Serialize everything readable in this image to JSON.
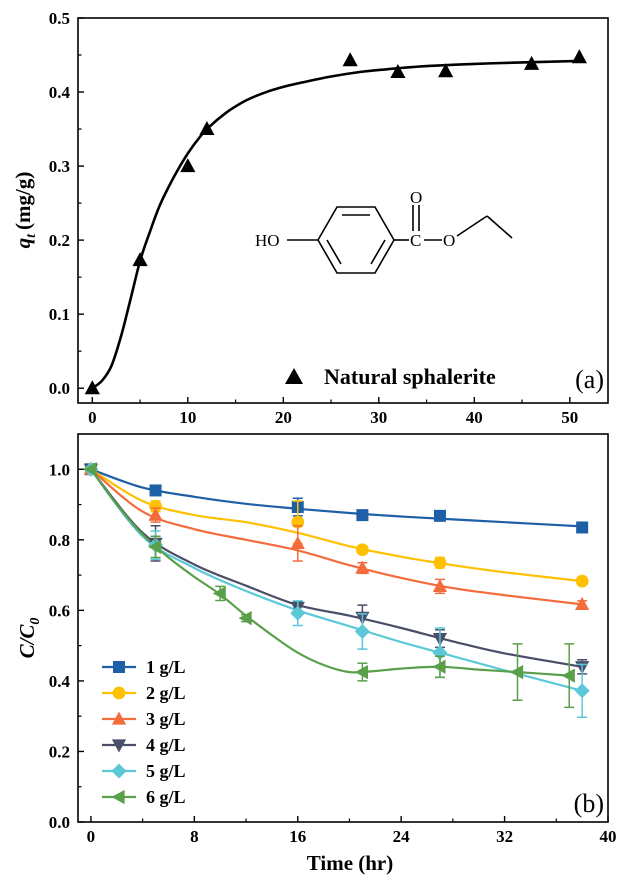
{
  "chart_data": [
    {
      "type": "scatter",
      "panel_label": "(a)",
      "xlim": [
        -1.5,
        54
      ],
      "ylim": [
        -0.02,
        0.5
      ],
      "xticks": [
        "0",
        "10",
        "20",
        "30",
        "40",
        "50"
      ],
      "yticks": [
        "0.0",
        "0.1",
        "0.2",
        "0.3",
        "0.4",
        "0.5"
      ],
      "xlabel": "",
      "ylabel": {
        "main": "q",
        "sub": "t",
        "unit": "(mg/g)"
      },
      "legend": {
        "position": "bottom-right",
        "entries": [
          "Natural sphalerite"
        ]
      },
      "structure_labels": {
        "hydroxyl": "HO",
        "carbonyl_c": "C",
        "carbonyl_o": "O",
        "ester_o": "O"
      },
      "series": [
        {
          "name": "Natural sphalerite",
          "marker": "triangle-up",
          "color": "#000000",
          "x": [
            0,
            5,
            10,
            12,
            27,
            32,
            37,
            46,
            51
          ],
          "y": [
            0.0,
            0.173,
            0.3,
            0.35,
            0.443,
            0.427,
            0.428,
            0.438,
            0.447
          ]
        }
      ],
      "fit_curve": {
        "color": "#000000",
        "x": [
          0,
          1,
          2,
          3,
          4,
          5,
          6,
          7,
          8,
          9,
          10,
          11,
          12,
          14,
          16,
          18,
          20,
          22,
          25,
          28,
          31,
          35,
          40,
          45,
          51
        ],
        "y": [
          0.0,
          0.01,
          0.03,
          0.07,
          0.12,
          0.172,
          0.21,
          0.245,
          0.272,
          0.296,
          0.317,
          0.335,
          0.35,
          0.372,
          0.388,
          0.399,
          0.407,
          0.413,
          0.421,
          0.427,
          0.431,
          0.435,
          0.438,
          0.44,
          0.442
        ]
      }
    },
    {
      "type": "line",
      "panel_label": "(b)",
      "xlim": [
        -1,
        40
      ],
      "ylim": [
        0.0,
        1.1
      ],
      "xticks": [
        "0",
        "8",
        "16",
        "24",
        "32",
        "40"
      ],
      "yticks": [
        "0.0",
        "0.2",
        "0.4",
        "0.6",
        "0.8",
        "1.0"
      ],
      "xlabel": "Time (hr)",
      "ylabel": {
        "main": "C/C",
        "sub": "0"
      },
      "legend": {
        "position": "bottom-left"
      },
      "series": [
        {
          "name": "1 g/L",
          "marker": "square",
          "color": "#1f5fa8",
          "x": [
            0,
            5,
            16,
            21,
            27,
            38
          ],
          "y": [
            1.0,
            0.94,
            0.893,
            0.87,
            0.868,
            0.835
          ],
          "err": [
            0,
            0.01,
            0.025,
            0.01,
            0.01,
            0.01
          ]
        },
        {
          "name": "2 g/L",
          "marker": "circle",
          "color": "#ffc000",
          "x": [
            0,
            5,
            16,
            21,
            27,
            38
          ],
          "y": [
            1.0,
            0.895,
            0.85,
            0.772,
            0.735,
            0.683
          ],
          "err": [
            0,
            0.015,
            0.06,
            0.01,
            0.015,
            0.01
          ]
        },
        {
          "name": "3 g/L",
          "marker": "triangle-up",
          "color": "#f46b3c",
          "x": [
            0,
            5,
            16,
            21,
            27,
            38
          ],
          "y": [
            1.0,
            0.87,
            0.79,
            0.72,
            0.668,
            0.617
          ],
          "err": [
            0,
            0.02,
            0.05,
            0.015,
            0.02,
            0.01
          ]
        },
        {
          "name": "4 g/L",
          "marker": "triangle-down",
          "color": "#4a4e68",
          "x": [
            0,
            5,
            16,
            21,
            27,
            38
          ],
          "y": [
            1.0,
            0.79,
            0.608,
            0.58,
            0.52,
            0.44
          ],
          "err": [
            0,
            0.05,
            0.015,
            0.035,
            0.025,
            0.02
          ]
        },
        {
          "name": "5 g/L",
          "marker": "diamond",
          "color": "#5bc8d8",
          "x": [
            0,
            5,
            16,
            21,
            27,
            38
          ],
          "y": [
            1.0,
            0.785,
            0.592,
            0.54,
            0.48,
            0.372
          ],
          "err": [
            0,
            0.04,
            0.035,
            0.05,
            0.07,
            0.075
          ]
        },
        {
          "name": "6 g/L",
          "marker": "triangle-left",
          "color": "#5aa04a",
          "x": [
            0,
            5,
            10,
            12,
            21,
            27,
            33,
            37
          ],
          "y": [
            1.0,
            0.78,
            0.648,
            0.578,
            0.425,
            0.44,
            0.425,
            0.415
          ],
          "err": [
            0,
            0.03,
            0.02,
            0.01,
            0.025,
            0.03,
            0.08,
            0.09
          ]
        }
      ],
      "curves": [
        {
          "x": [
            0,
            4,
            8,
            12,
            16,
            20,
            24,
            28,
            32,
            38
          ],
          "y": [
            1.0,
            0.948,
            0.922,
            0.902,
            0.888,
            0.876,
            0.866,
            0.858,
            0.85,
            0.838
          ]
        },
        {
          "x": [
            0,
            4,
            8,
            12,
            16,
            20,
            24,
            28,
            32,
            38
          ],
          "y": [
            1.0,
            0.91,
            0.87,
            0.85,
            0.82,
            0.782,
            0.752,
            0.728,
            0.708,
            0.683
          ]
        },
        {
          "x": [
            0,
            4,
            8,
            12,
            16,
            20,
            24,
            28,
            32,
            38
          ],
          "y": [
            1.0,
            0.88,
            0.83,
            0.8,
            0.77,
            0.728,
            0.692,
            0.663,
            0.643,
            0.617
          ]
        },
        {
          "x": [
            0,
            4,
            8,
            12,
            16,
            20,
            24,
            28,
            32,
            38
          ],
          "y": [
            1.0,
            0.82,
            0.73,
            0.67,
            0.615,
            0.585,
            0.55,
            0.512,
            0.478,
            0.44
          ]
        },
        {
          "x": [
            0,
            4,
            8,
            12,
            16,
            20,
            24,
            28,
            32,
            38
          ],
          "y": [
            1.0,
            0.81,
            0.72,
            0.655,
            0.6,
            0.555,
            0.51,
            0.47,
            0.43,
            0.372
          ]
        },
        {
          "x": [
            0,
            2,
            4,
            6,
            8,
            10,
            12,
            14,
            16,
            18,
            20,
            22,
            24,
            27,
            30,
            33,
            37
          ],
          "y": [
            1.0,
            0.9,
            0.815,
            0.75,
            0.695,
            0.645,
            0.585,
            0.53,
            0.48,
            0.445,
            0.425,
            0.428,
            0.435,
            0.44,
            0.432,
            0.425,
            0.415
          ]
        }
      ]
    }
  ]
}
